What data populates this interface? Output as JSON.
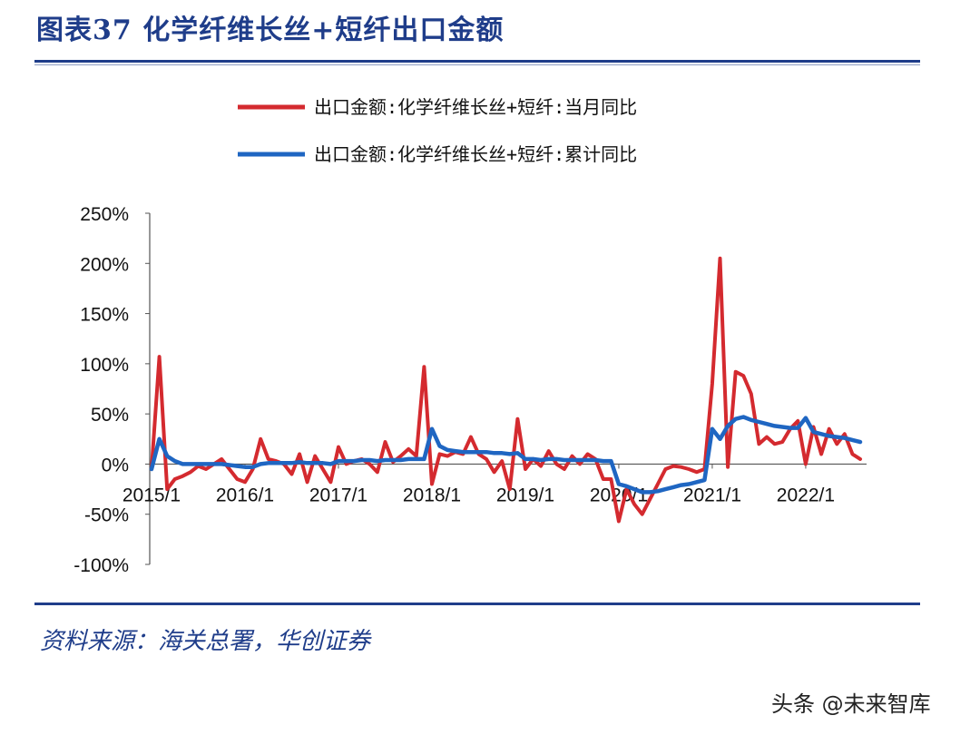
{
  "header": {
    "title": "图表37 化学纤维长丝+短纤出口金额"
  },
  "footer": {
    "source": "资料来源：海关总署，华创证券",
    "watermark": "头条 @未来智库"
  },
  "colors": {
    "monthly": "#d42a2f",
    "cumulative": "#1f66c2",
    "brand": "#1f3d8a"
  },
  "chart_data": {
    "type": "line",
    "title": "图表37 化学纤维长丝+短纤出口金额",
    "xlabel": "",
    "ylabel": "",
    "ylim": [
      -100,
      250
    ],
    "yticks": [
      "-100%",
      "-50%",
      "0%",
      "50%",
      "100%",
      "150%",
      "200%",
      "250%"
    ],
    "yunit": "%",
    "xticks": [
      "2015/1",
      "2016/1",
      "2017/1",
      "2018/1",
      "2019/1",
      "2020/1",
      "2021/1",
      "2022/1"
    ],
    "x_start": "2015/1",
    "x_end": "2022/10",
    "legend_position": "top-center",
    "grid": false,
    "series": [
      {
        "name": "出口金额:化学纤维长丝+短纤:当月同比",
        "color": "#d42a2f",
        "values": [
          -5,
          107,
          -25,
          -15,
          -12,
          -8,
          -2,
          -5,
          0,
          5,
          -5,
          -15,
          -18,
          -5,
          25,
          5,
          3,
          0,
          -10,
          10,
          -18,
          8,
          -5,
          -18,
          17,
          0,
          3,
          5,
          0,
          -8,
          22,
          2,
          8,
          15,
          8,
          97,
          -20,
          10,
          8,
          12,
          10,
          27,
          10,
          5,
          -8,
          3,
          -25,
          45,
          -5,
          5,
          -2,
          13,
          0,
          -5,
          8,
          0,
          10,
          5,
          -15,
          -15,
          -57,
          -25,
          -40,
          -50,
          -35,
          -20,
          -5,
          -2,
          -3,
          -5,
          -8,
          -5,
          80,
          205,
          -3,
          92,
          88,
          70,
          20,
          27,
          20,
          22,
          35,
          43,
          0,
          37,
          10,
          35,
          20,
          30,
          10,
          5
        ]
      },
      {
        "name": "出口金额:化学纤维长丝+短纤:累计同比",
        "color": "#1f66c2",
        "values": [
          -5,
          25,
          8,
          3,
          0,
          0,
          0,
          0,
          0,
          0,
          -1,
          -2,
          -3,
          -3,
          0,
          1,
          1,
          1,
          1,
          2,
          1,
          1,
          1,
          0,
          3,
          3,
          3,
          4,
          4,
          3,
          4,
          4,
          4,
          5,
          5,
          5,
          35,
          18,
          14,
          13,
          12,
          12,
          12,
          12,
          11,
          11,
          10,
          11,
          5,
          5,
          4,
          5,
          5,
          4,
          4,
          4,
          4,
          4,
          3,
          3,
          -20,
          -22,
          -25,
          -28,
          -28,
          -27,
          -25,
          -23,
          -21,
          -20,
          -18,
          -16,
          35,
          25,
          38,
          45,
          47,
          44,
          42,
          40,
          38,
          37,
          36,
          36,
          46,
          32,
          30,
          28,
          27,
          26,
          24,
          22
        ]
      }
    ]
  }
}
